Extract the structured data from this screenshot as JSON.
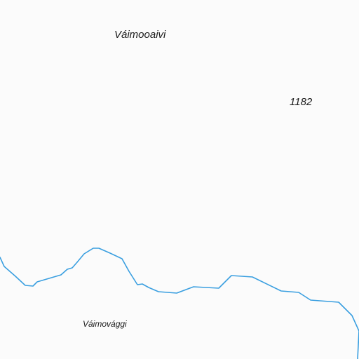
{
  "labels": {
    "peak_name": "Váimooaivi",
    "elevation": "1182",
    "valley_name": "Váimovággi"
  },
  "colors": {
    "background": "#fbfbfb",
    "stream": "#3a9fe0",
    "label_text": "#1a1a1a"
  },
  "features": [
    {
      "type": "stream",
      "name": "",
      "color": "#3a9fe0"
    }
  ]
}
